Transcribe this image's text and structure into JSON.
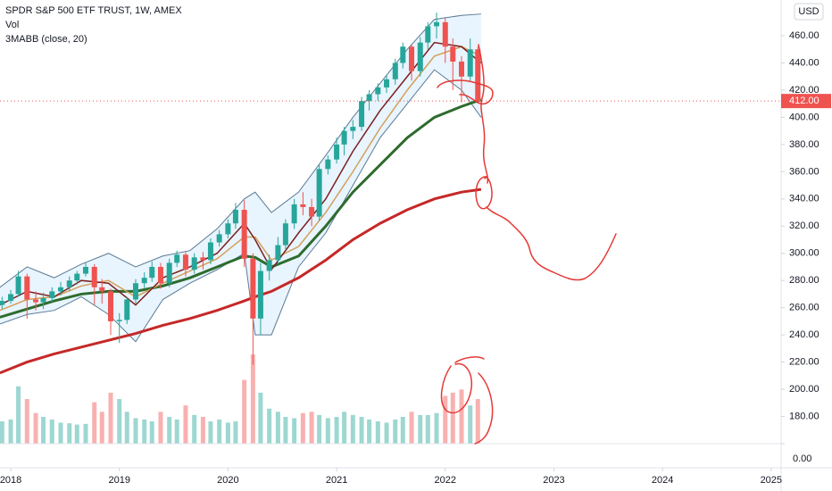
{
  "chart_data": {
    "type": "candlestick",
    "title": "SPDR S&P 500 ETF TRUST, 1W, AMEX",
    "volume_label": "Vol",
    "indicator_label": "3MABB (close, 20)",
    "currency": "USD",
    "xlim": [
      2017.901,
      2025.092
    ],
    "xticks": [
      2018,
      2019,
      2020,
      2021,
      2022,
      2023,
      2024,
      2025
    ],
    "ylim": [
      138.3,
      486.3
    ],
    "yticks": [
      {
        "value": 180,
        "label": "180.00"
      },
      {
        "value": 200,
        "label": "200.00"
      },
      {
        "value": 220,
        "label": "220.00"
      },
      {
        "value": 240,
        "label": "240.00"
      },
      {
        "value": 260,
        "label": "260.00"
      },
      {
        "value": 280,
        "label": "280.00"
      },
      {
        "value": 300,
        "label": "300.00"
      },
      {
        "value": 320,
        "label": "320.00"
      },
      {
        "value": 340,
        "label": "340.00"
      },
      {
        "value": 360,
        "label": "360.00"
      },
      {
        "value": 380,
        "label": "380.00"
      },
      {
        "value": 400,
        "label": "400.00"
      },
      {
        "value": 420,
        "label": "420.00"
      },
      {
        "value": 440,
        "label": "440.00"
      },
      {
        "value": 460,
        "label": "460.00"
      }
    ],
    "y2lim": [
      0,
      2800
    ],
    "y2ticks": [
      {
        "value": 0,
        "label": "0.00"
      }
    ],
    "last_price": {
      "value": 412,
      "label": "412.00"
    },
    "up_color": "#26a69a",
    "down_color": "#ef5350",
    "candles": {
      "x": [
        2017.92,
        2018.0,
        2018.07,
        2018.15,
        2018.23,
        2018.3,
        2018.38,
        2018.46,
        2018.54,
        2018.61,
        2018.69,
        2018.77,
        2018.84,
        2018.92,
        2019.0,
        2019.07,
        2019.15,
        2019.23,
        2019.3,
        2019.38,
        2019.46,
        2019.53,
        2019.61,
        2019.69,
        2019.77,
        2019.84,
        2019.92,
        2020.0,
        2020.07,
        2020.15,
        2020.23,
        2020.3,
        2020.38,
        2020.46,
        2020.53,
        2020.61,
        2020.69,
        2020.77,
        2020.84,
        2020.92,
        2021.0,
        2021.07,
        2021.15,
        2021.23,
        2021.3,
        2021.38,
        2021.46,
        2021.54,
        2021.61,
        2021.69,
        2021.77,
        2021.84,
        2021.92,
        2022.0,
        2022.07,
        2022.15,
        2022.23,
        2022.3
      ],
      "open": [
        262,
        265,
        270,
        283,
        266,
        264,
        267,
        272,
        275,
        280,
        285,
        290,
        275,
        272,
        250,
        251,
        266,
        278,
        282,
        290,
        278,
        293,
        299,
        288,
        297,
        295,
        308,
        314,
        322,
        332,
        296,
        252,
        287,
        295,
        306,
        322,
        336,
        334,
        327,
        362,
        369,
        380,
        390,
        393,
        412,
        417,
        422,
        428,
        440,
        452,
        434,
        455,
        467,
        470,
        452,
        441,
        430,
        450
      ],
      "high": [
        268,
        273,
        287,
        285,
        272,
        271,
        275,
        279,
        283,
        287,
        293,
        292,
        281,
        274,
        256,
        268,
        281,
        286,
        294,
        293,
        296,
        302,
        301,
        300,
        301,
        311,
        317,
        325,
        337,
        339,
        300,
        293,
        299,
        312,
        325,
        340,
        345,
        340,
        365,
        372,
        385,
        393,
        398,
        415,
        420,
        425,
        431,
        443,
        455,
        454,
        459,
        470,
        477,
        473,
        458,
        445,
        458,
        452
      ],
      "low": [
        259,
        263,
        268,
        252,
        258,
        259,
        264,
        269,
        272,
        277,
        283,
        262,
        263,
        240,
        234,
        248,
        263,
        274,
        279,
        274,
        275,
        290,
        283,
        285,
        288,
        292,
        305,
        311,
        318,
        290,
        218,
        240,
        280,
        292,
        303,
        318,
        328,
        320,
        324,
        358,
        366,
        372,
        384,
        390,
        405,
        412,
        418,
        424,
        436,
        427,
        430,
        450,
        458,
        440,
        420,
        411,
        426,
        410
      ],
      "close": [
        265,
        270,
        283,
        266,
        264,
        267,
        272,
        275,
        280,
        285,
        290,
        275,
        272,
        250,
        251,
        266,
        278,
        282,
        290,
        278,
        293,
        299,
        288,
        297,
        295,
        308,
        314,
        322,
        332,
        296,
        252,
        287,
        295,
        306,
        322,
        336,
        334,
        327,
        362,
        369,
        380,
        390,
        393,
        412,
        417,
        422,
        428,
        440,
        452,
        434,
        455,
        467,
        470,
        452,
        441,
        430,
        450,
        412
      ],
      "volume": [
        350,
        380,
        900,
        700,
        480,
        420,
        380,
        330,
        320,
        300,
        310,
        650,
        500,
        800,
        700,
        500,
        400,
        380,
        350,
        500,
        420,
        380,
        600,
        450,
        420,
        350,
        380,
        330,
        350,
        1000,
        1400,
        800,
        550,
        500,
        420,
        400,
        480,
        500,
        450,
        400,
        420,
        500,
        450,
        420,
        380,
        350,
        330,
        380,
        420,
        500,
        450,
        450,
        480,
        750,
        800,
        850,
        600,
        700
      ]
    },
    "bands": {
      "color": "#2196f3",
      "x": [
        2017.9,
        2018.15,
        2018.4,
        2018.65,
        2018.9,
        2019.15,
        2019.4,
        2019.65,
        2019.9,
        2020.15,
        2020.25,
        2020.4,
        2020.65,
        2020.9,
        2021.15,
        2021.4,
        2021.65,
        2021.9,
        2022.15,
        2022.33
      ],
      "upper": [
        275,
        290,
        282,
        292,
        300,
        290,
        298,
        302,
        318,
        340,
        345,
        330,
        345,
        372,
        400,
        425,
        450,
        472,
        475,
        476
      ],
      "lower": [
        248,
        255,
        258,
        268,
        255,
        235,
        266,
        278,
        288,
        300,
        240,
        240,
        290,
        315,
        350,
        385,
        410,
        435,
        420,
        400
      ]
    },
    "series": [
      {
        "color": "#c62828",
        "width": 3,
        "x": [
          2017.9,
          2018.15,
          2018.4,
          2018.65,
          2018.9,
          2019.15,
          2019.4,
          2019.65,
          2019.9,
          2020.15,
          2020.25,
          2020.4,
          2020.65,
          2020.9,
          2021.15,
          2021.4,
          2021.65,
          2021.9,
          2022.15,
          2022.33
        ],
        "values": [
          212,
          220,
          226,
          231,
          236,
          241,
          247,
          252,
          258,
          265,
          268,
          272,
          282,
          295,
          310,
          322,
          332,
          340,
          345,
          347
        ]
      },
      {
        "color": "#2e6b2e",
        "width": 3,
        "x": [
          2017.9,
          2018.15,
          2018.4,
          2018.65,
          2018.9,
          2019.15,
          2019.4,
          2019.65,
          2019.9,
          2020.15,
          2020.25,
          2020.4,
          2020.65,
          2020.9,
          2021.15,
          2021.4,
          2021.65,
          2021.9,
          2022.15,
          2022.33
        ],
        "values": [
          253,
          259,
          265,
          270,
          272,
          272,
          276,
          282,
          290,
          298,
          297,
          290,
          298,
          320,
          345,
          365,
          385,
          400,
          408,
          413
        ]
      },
      {
        "color": "#d4a05a",
        "width": 1.5,
        "x": [
          2017.9,
          2018.15,
          2018.4,
          2018.65,
          2018.9,
          2019.15,
          2019.4,
          2019.65,
          2019.9,
          2020.15,
          2020.25,
          2020.4,
          2020.65,
          2020.9,
          2021.15,
          2021.4,
          2021.65,
          2021.9,
          2022.15,
          2022.33
        ],
        "values": [
          258,
          266,
          268,
          276,
          280,
          268,
          278,
          287,
          296,
          312,
          312,
          295,
          305,
          330,
          360,
          392,
          420,
          445,
          452,
          445
        ]
      },
      {
        "color": "#7b1f1f",
        "width": 1.5,
        "x": [
          2017.9,
          2018.15,
          2018.4,
          2018.65,
          2018.9,
          2019.15,
          2019.4,
          2019.65,
          2019.9,
          2020.15,
          2020.25,
          2020.4,
          2020.65,
          2020.9,
          2021.15,
          2021.4,
          2021.65,
          2021.9,
          2022.15,
          2022.33
        ],
        "values": [
          262,
          272,
          268,
          280,
          278,
          262,
          282,
          290,
          300,
          322,
          310,
          288,
          315,
          340,
          375,
          405,
          430,
          455,
          452,
          440
        ]
      }
    ]
  }
}
